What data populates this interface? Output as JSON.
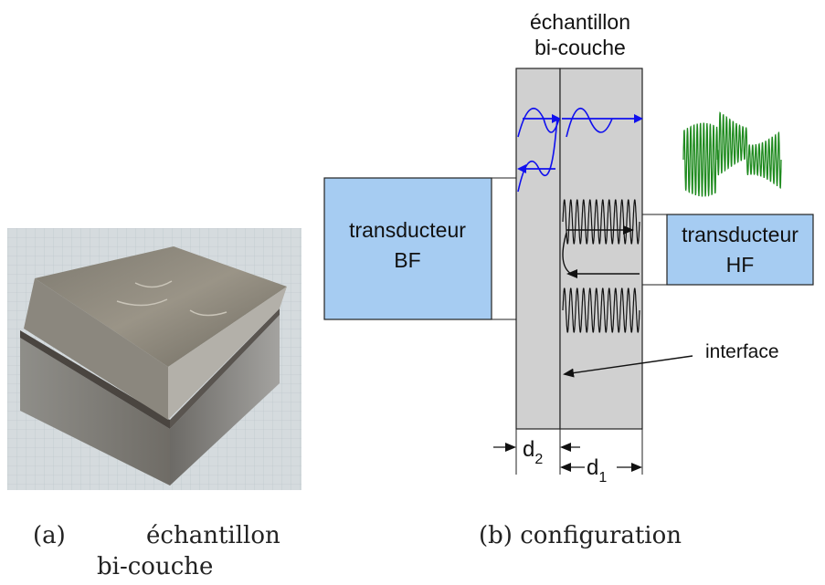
{
  "diagram": {
    "sample_title_line1": "échantillon",
    "sample_title_line2": "bi-couche",
    "transducer_lf_line1": "transducteur",
    "transducer_lf_line2": "BF",
    "transducer_hf_line1": "transducteur",
    "transducer_hf_line2": "HF",
    "interface_label": "interface",
    "d2_label": "d",
    "d2_sub": "2",
    "d1_label": "d",
    "d1_sub": "1"
  },
  "captions": {
    "a_label": "(a)",
    "a_text": "échantillon",
    "a_text2": "bi-couche",
    "b_text": "(b) configuration"
  },
  "colors": {
    "transducer_fill": "#a6ccf2",
    "sample_fill": "#d0d0d0",
    "lf_wave": "#1010ee",
    "hf_signal": "#1e8a1e",
    "hf_wave": "#111111"
  }
}
